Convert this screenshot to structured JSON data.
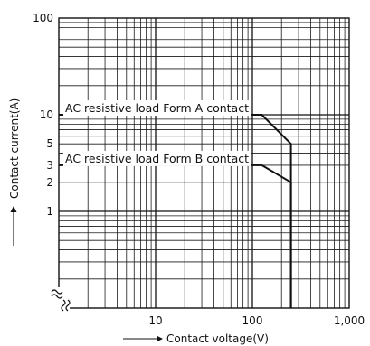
{
  "chart_data": {
    "type": "line",
    "xlabel": "Contact voltage(V)",
    "ylabel": "Contact current(A)",
    "x_scale": "log",
    "y_scale": "log",
    "xlim": [
      1,
      1000
    ],
    "ylim": [
      0.1,
      100
    ],
    "grid": true,
    "x_ticks": [
      {
        "value": 10,
        "label": "10"
      },
      {
        "value": 100,
        "label": "100"
      },
      {
        "value": 1000,
        "label": "1,000"
      }
    ],
    "y_ticks": [
      {
        "value": 1,
        "label": "1"
      },
      {
        "value": 2,
        "label": "2"
      },
      {
        "value": 3,
        "label": "3"
      },
      {
        "value": 5,
        "label": "5"
      },
      {
        "value": 10,
        "label": "10"
      },
      {
        "value": 100,
        "label": "100"
      }
    ],
    "series": [
      {
        "name": "AC resistive load Form A contact",
        "x": [
          1,
          125,
          250,
          250
        ],
        "y": [
          10,
          10,
          5,
          0.1
        ]
      },
      {
        "name": "AC resistive load Form B contact",
        "x": [
          1,
          125,
          250,
          250
        ],
        "y": [
          3,
          3,
          2,
          0.1
        ]
      }
    ]
  }
}
